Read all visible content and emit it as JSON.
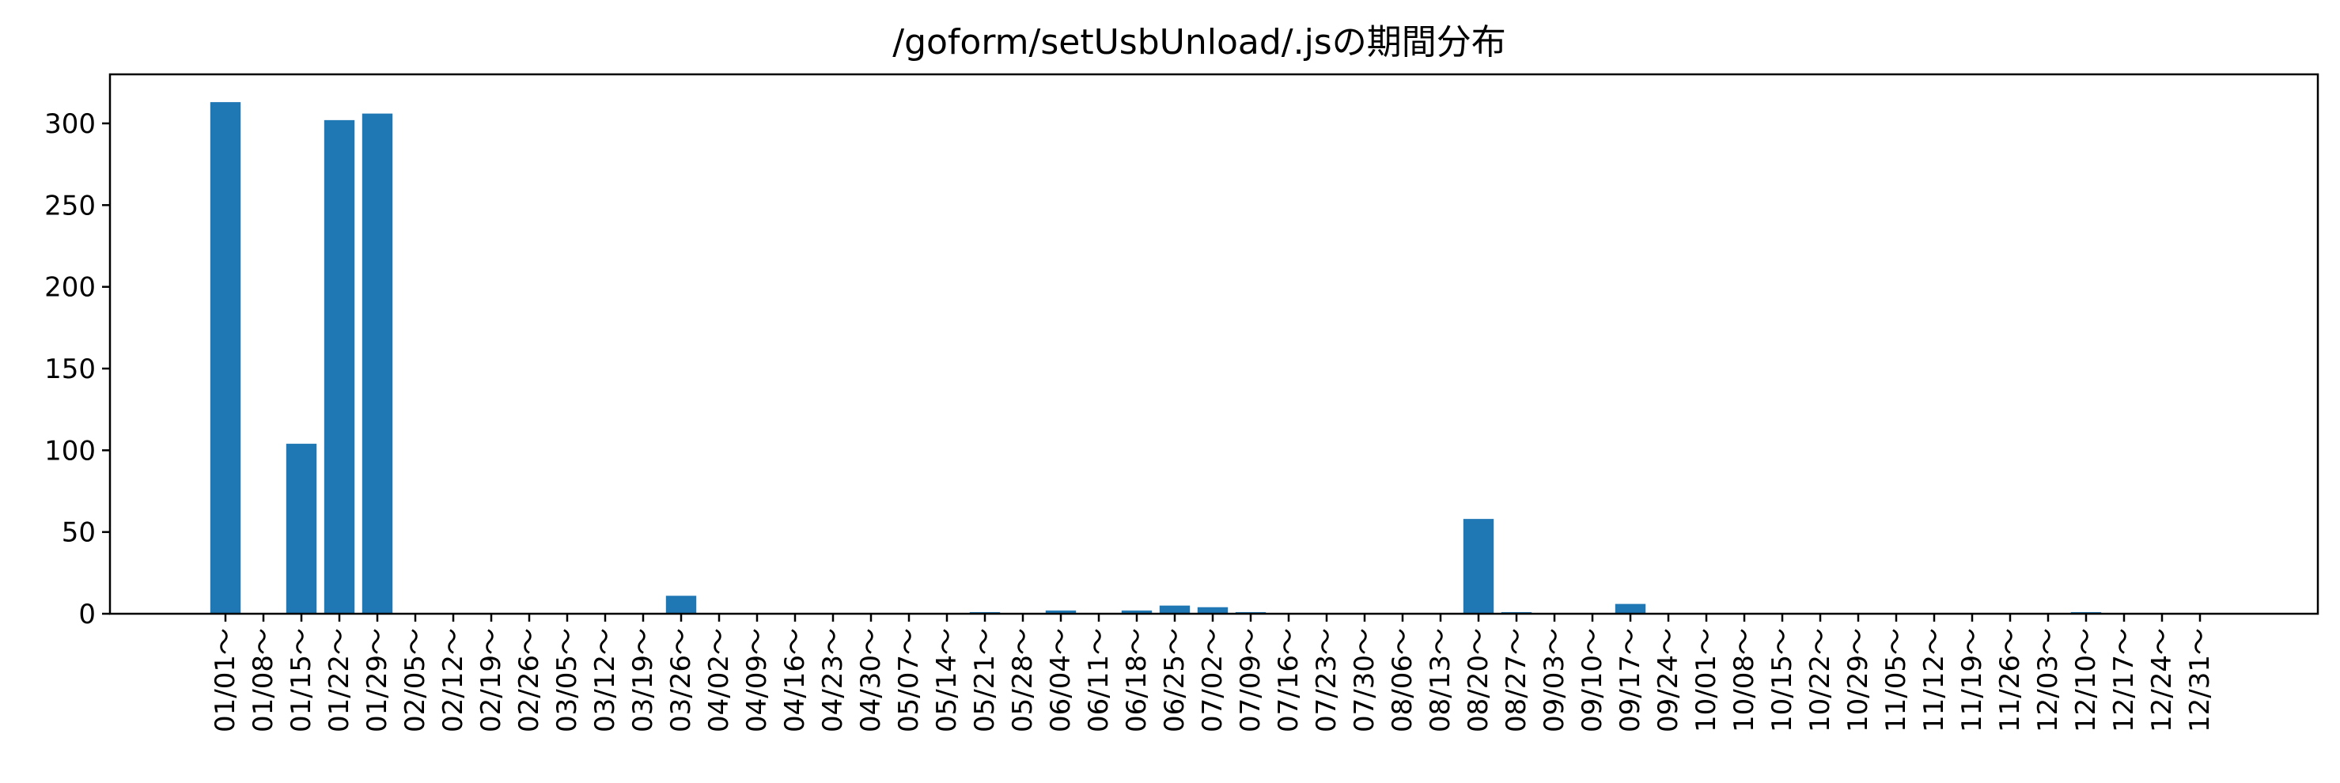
{
  "chart_data": {
    "type": "bar",
    "title": "/goform/setUsbUnload/.jsの期間分布",
    "xlabel": "",
    "ylabel": "",
    "ylim": [
      0,
      330
    ],
    "yticks": [
      0,
      50,
      100,
      150,
      200,
      250,
      300
    ],
    "grid": false,
    "bar_color": "#1f77b4",
    "categories": [
      "01/01～",
      "01/08～",
      "01/15～",
      "01/22～",
      "01/29～",
      "02/05～",
      "02/12～",
      "02/19～",
      "02/26～",
      "03/05～",
      "03/12～",
      "03/19～",
      "03/26～",
      "04/02～",
      "04/09～",
      "04/16～",
      "04/23～",
      "04/30～",
      "05/07～",
      "05/14～",
      "05/21～",
      "05/28～",
      "06/04～",
      "06/11～",
      "06/18～",
      "06/25～",
      "07/02～",
      "07/09～",
      "07/16～",
      "07/23～",
      "07/30～",
      "08/06～",
      "08/13～",
      "08/20～",
      "08/27～",
      "09/03～",
      "09/10～",
      "09/17～",
      "09/24～",
      "10/01～",
      "10/08～",
      "10/15～",
      "10/22～",
      "10/29～",
      "11/05～",
      "11/12～",
      "11/19～",
      "11/26～",
      "12/03～",
      "12/10～",
      "12/17～",
      "12/24～",
      "12/31～"
    ],
    "values": [
      313,
      0,
      104,
      302,
      306,
      0,
      0,
      0,
      0,
      0,
      0,
      0,
      11,
      0,
      0,
      0,
      0,
      0,
      0,
      0,
      1,
      0,
      2,
      0,
      2,
      5,
      4,
      1,
      0,
      0,
      0,
      0,
      0,
      58,
      1,
      0,
      0,
      6,
      0,
      0,
      0,
      0,
      0,
      0,
      0,
      0,
      0,
      0,
      0,
      1,
      0,
      0,
      0
    ]
  }
}
